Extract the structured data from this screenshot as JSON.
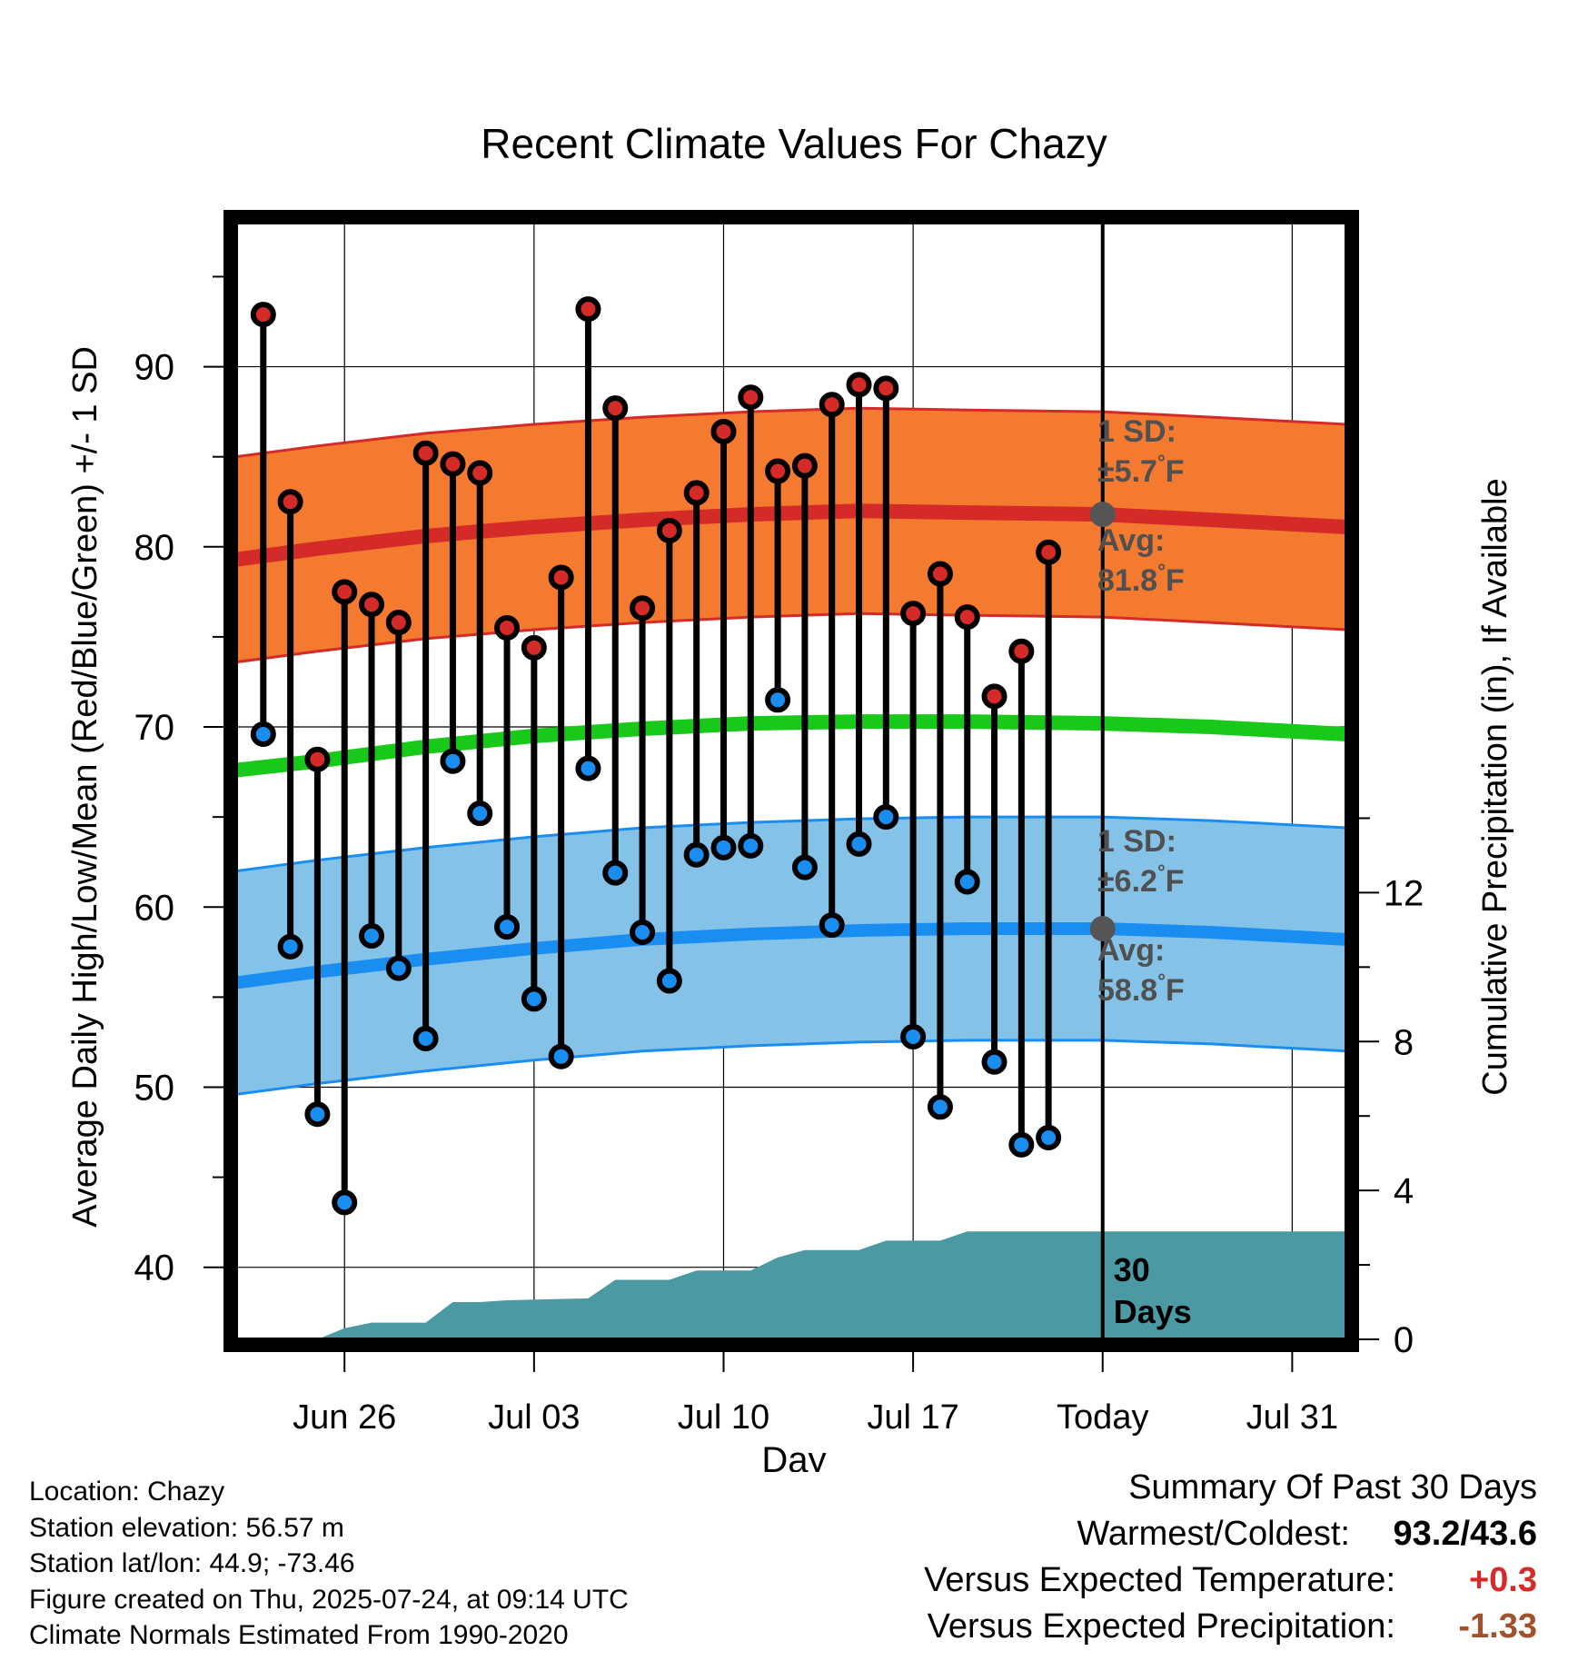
{
  "title": "Recent Climate Values For Chazy",
  "colors": {
    "high_band": "#f47a30",
    "high_avg": "#d42a28",
    "low_band": "#85c2e8",
    "low_avg": "#1a8ef0",
    "mean": "#19c919",
    "precip": "#4b9aa3",
    "high_marker": "#d42a28",
    "low_marker": "#1a8ef0",
    "annotation": "#505050",
    "positive": "#d42a28",
    "negative": "#a0522d"
  },
  "chart_data": {
    "type": "line",
    "title": "Recent Climate Values For Chazy",
    "xlabel": "Day",
    "ylabel": "Average Daily High/Low/Mean (Red/Blue/Green) +/- 1 SD",
    "y2label": "Cumulative Precipitation (in), If Available",
    "xlim": [
      "2025-06-22",
      "2025-08-02"
    ],
    "ylim": [
      36,
      98
    ],
    "y2lim": [
      0,
      30
    ],
    "yticks": [
      40,
      50,
      60,
      70,
      80,
      90
    ],
    "y2ticks": [
      0,
      4,
      8,
      12
    ],
    "xticks": [
      {
        "date": "2025-06-26",
        "label": "Jun 26"
      },
      {
        "date": "2025-07-03",
        "label": "Jul 03"
      },
      {
        "date": "2025-07-10",
        "label": "Jul 10"
      },
      {
        "date": "2025-07-17",
        "label": "Jul 17"
      },
      {
        "date": "2025-07-24",
        "label": "Today"
      },
      {
        "date": "2025-07-31",
        "label": "Jul 31"
      }
    ],
    "grid": true,
    "today": "2025-07-24",
    "today_label": [
      "30",
      "Days"
    ],
    "observed": [
      {
        "date": "2025-06-23",
        "high": 92.9,
        "low": 69.6
      },
      {
        "date": "2025-06-24",
        "high": 82.5,
        "low": 57.8
      },
      {
        "date": "2025-06-25",
        "high": 68.2,
        "low": 48.5
      },
      {
        "date": "2025-06-26",
        "high": 77.5,
        "low": 43.6
      },
      {
        "date": "2025-06-27",
        "high": 76.8,
        "low": 58.4
      },
      {
        "date": "2025-06-28",
        "high": 75.8,
        "low": 56.6
      },
      {
        "date": "2025-06-29",
        "high": 85.2,
        "low": 52.7
      },
      {
        "date": "2025-06-30",
        "high": 84.6,
        "low": 68.1
      },
      {
        "date": "2025-07-01",
        "high": 84.1,
        "low": 65.2
      },
      {
        "date": "2025-07-02",
        "high": 75.5,
        "low": 58.9
      },
      {
        "date": "2025-07-03",
        "high": 74.4,
        "low": 54.9
      },
      {
        "date": "2025-07-04",
        "high": 78.3,
        "low": 51.7
      },
      {
        "date": "2025-07-05",
        "high": 93.2,
        "low": 67.7
      },
      {
        "date": "2025-07-06",
        "high": 87.7,
        "low": 61.9
      },
      {
        "date": "2025-07-07",
        "high": 76.6,
        "low": 58.6
      },
      {
        "date": "2025-07-08",
        "high": 80.9,
        "low": 55.9
      },
      {
        "date": "2025-07-09",
        "high": 83.0,
        "low": 62.9
      },
      {
        "date": "2025-07-10",
        "high": 86.4,
        "low": 63.3
      },
      {
        "date": "2025-07-11",
        "high": 88.3,
        "low": 63.4
      },
      {
        "date": "2025-07-12",
        "high": 84.2,
        "low": 71.5
      },
      {
        "date": "2025-07-13",
        "high": 84.5,
        "low": 62.2
      },
      {
        "date": "2025-07-14",
        "high": 87.9,
        "low": 59.0
      },
      {
        "date": "2025-07-15",
        "high": 89.0,
        "low": 63.5
      },
      {
        "date": "2025-07-16",
        "high": 88.8,
        "low": 65.0
      },
      {
        "date": "2025-07-17",
        "high": 76.3,
        "low": 52.8
      },
      {
        "date": "2025-07-18",
        "high": 78.5,
        "low": 48.9
      },
      {
        "date": "2025-07-19",
        "high": 76.1,
        "low": 61.4
      },
      {
        "date": "2025-07-20",
        "high": 71.7,
        "low": 51.4
      },
      {
        "date": "2025-07-21",
        "high": 74.2,
        "low": 46.8
      },
      {
        "date": "2025-07-22",
        "high": 79.7,
        "low": 47.2
      }
    ],
    "normals": [
      {
        "date": "2025-06-22",
        "high": 79.3,
        "low": 55.8,
        "mean": 67.6
      },
      {
        "date": "2025-06-25",
        "high": 79.9,
        "low": 56.4,
        "mean": 68.1
      },
      {
        "date": "2025-06-29",
        "high": 80.6,
        "low": 57.1,
        "mean": 68.9
      },
      {
        "date": "2025-07-03",
        "high": 81.1,
        "low": 57.7,
        "mean": 69.5
      },
      {
        "date": "2025-07-07",
        "high": 81.5,
        "low": 58.2,
        "mean": 69.9
      },
      {
        "date": "2025-07-11",
        "high": 81.8,
        "low": 58.5,
        "mean": 70.2
      },
      {
        "date": "2025-07-15",
        "high": 82.0,
        "low": 58.7,
        "mean": 70.3
      },
      {
        "date": "2025-07-19",
        "high": 81.9,
        "low": 58.8,
        "mean": 70.3
      },
      {
        "date": "2025-07-24",
        "high": 81.8,
        "low": 58.8,
        "mean": 70.2
      },
      {
        "date": "2025-07-28",
        "high": 81.5,
        "low": 58.6,
        "mean": 70.0
      },
      {
        "date": "2025-08-02",
        "high": 81.1,
        "low": 58.2,
        "mean": 69.6
      }
    ],
    "high_sd": 5.7,
    "low_sd": 6.2,
    "precip": [
      {
        "date": "2025-06-22",
        "value": 0
      },
      {
        "date": "2025-06-25",
        "value": 0
      },
      {
        "date": "2025-06-26",
        "value": 0.3
      },
      {
        "date": "2025-06-27",
        "value": 0.45
      },
      {
        "date": "2025-06-29",
        "value": 0.45
      },
      {
        "date": "2025-06-30",
        "value": 1.0
      },
      {
        "date": "2025-07-01",
        "value": 1.0
      },
      {
        "date": "2025-07-02",
        "value": 1.05
      },
      {
        "date": "2025-07-05",
        "value": 1.1
      },
      {
        "date": "2025-07-06",
        "value": 1.6
      },
      {
        "date": "2025-07-08",
        "value": 1.6
      },
      {
        "date": "2025-07-09",
        "value": 1.85
      },
      {
        "date": "2025-07-11",
        "value": 1.85
      },
      {
        "date": "2025-07-12",
        "value": 2.2
      },
      {
        "date": "2025-07-13",
        "value": 2.4
      },
      {
        "date": "2025-07-15",
        "value": 2.4
      },
      {
        "date": "2025-07-16",
        "value": 2.65
      },
      {
        "date": "2025-07-18",
        "value": 2.65
      },
      {
        "date": "2025-07-19",
        "value": 2.9
      },
      {
        "date": "2025-08-02",
        "value": 2.9
      }
    ],
    "annotations": {
      "high_sd_lines": [
        "1 SD:",
        "±5.7",
        "°F"
      ],
      "high_avg_lines": [
        "Avg:",
        "81.8",
        "°F"
      ],
      "low_sd_lines": [
        "1 SD:",
        "±6.2",
        "°F"
      ],
      "low_avg_lines": [
        "Avg:",
        "58.8",
        "°F"
      ]
    }
  },
  "footer": {
    "location": "Location: Chazy",
    "elevation": "Station elevation: 56.57 m",
    "latlon": "Station lat/lon: 44.9; -73.46",
    "created": "Figure created on Thu, 2025-07-24, at 09:14 UTC",
    "normals": "Climate Normals Estimated From 1990-2020"
  },
  "summary": {
    "heading": "Summary Of Past 30 Days",
    "warmest_label": "Warmest/Coldest:",
    "warmest_value": "93.2/43.6",
    "temp_label": "Versus Expected Temperature:",
    "temp_value": "+0.3",
    "precip_label": "Versus Expected Precipitation:",
    "precip_value": "-1.33"
  }
}
